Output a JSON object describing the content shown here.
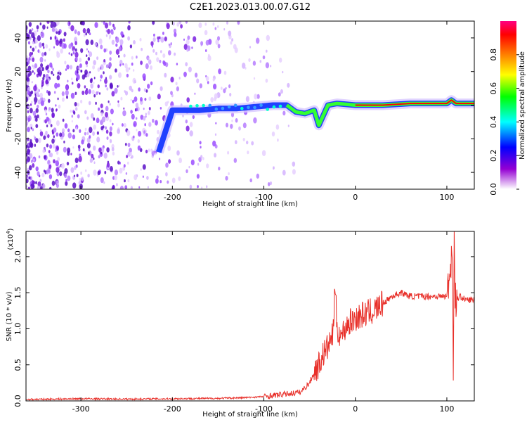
{
  "title": "C2E1.2023.013.00.07.G12",
  "colors": {
    "snr_line": "#e8302a",
    "spectral_core": "#ff0000",
    "spectral_mid": "#33ff33",
    "spectral_outer": "#2040ff",
    "scatter": "#8a2be2"
  },
  "chart_data": [
    {
      "type": "heatmap",
      "xlabel": "Height of straight line (km)",
      "ylabel": "Frequency (Hz)",
      "xlim": [
        -360,
        130
      ],
      "ylim": [
        -50,
        50
      ],
      "x_ticks": [
        -300,
        -200,
        -100,
        0,
        100
      ],
      "y_ticks": [
        40,
        20,
        0,
        -20,
        -40
      ],
      "colorbar": {
        "label": "Normalized spectral amplitude",
        "range": [
          0.0,
          1.0
        ],
        "ticks": [
          "0.0",
          "0.2",
          "0.4",
          "0.6",
          "0.8"
        ],
        "colors": [
          "#ffffff",
          "#9400d3",
          "#0000ff",
          "#00ffff",
          "#00ff00",
          "#ffff00",
          "#ff8000",
          "#ff0000",
          "#ff0080"
        ]
      },
      "signal_track": {
        "x": [
          -215,
          -200,
          -170,
          -150,
          -130,
          -110,
          -90,
          -75,
          -65,
          -55,
          -45,
          -40,
          -30,
          -20,
          0,
          30,
          60,
          100,
          105,
          110,
          130
        ],
        "y": [
          -28,
          -3,
          -3,
          -2,
          -2,
          -1,
          0,
          0,
          -4,
          -5,
          -3,
          -12,
          0,
          1,
          0,
          0,
          1,
          1,
          3,
          1,
          1
        ]
      }
    },
    {
      "type": "line",
      "xlabel": "Height of straight line (km)",
      "ylabel": "SNR (10 * v/v)",
      "scale_label": "(x10",
      "scale_exp": "4",
      "scale_close": ")",
      "xlim": [
        -360,
        130
      ],
      "ylim": [
        0,
        23500
      ],
      "x_ticks": [
        -300,
        -200,
        -100,
        0,
        100
      ],
      "y_ticks": [
        "0.0",
        "0.5",
        "1.0",
        "1.5",
        "2.0"
      ],
      "series": [
        {
          "x": [
            -360,
            -300,
            -250,
            -200,
            -150,
            -120,
            -100,
            -80,
            -60,
            -50,
            -45,
            -40,
            -35,
            -30,
            -25,
            -22,
            -20,
            -15,
            -10,
            -5,
            0,
            10,
            20,
            30,
            40,
            50,
            60,
            70,
            80,
            90,
            100,
            104,
            106,
            107,
            108,
            109,
            110,
            115,
            120,
            130
          ],
          "y": [
            200,
            300,
            250,
            300,
            350,
            450,
            600,
            900,
            1200,
            2500,
            4000,
            5000,
            6500,
            7500,
            9000,
            15500,
            10000,
            9000,
            10500,
            11000,
            11500,
            12000,
            12500,
            13500,
            14500,
            15000,
            14500,
            14500,
            14500,
            14500,
            14500,
            18500,
            22000,
            2500,
            23500,
            14500,
            14000,
            14500,
            14000,
            14000
          ]
        }
      ]
    }
  ]
}
